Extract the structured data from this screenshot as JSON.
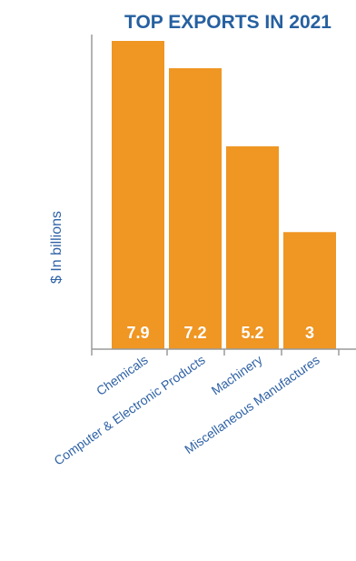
{
  "chart_data": {
    "type": "bar",
    "title": "TOP EXPORTS IN 2021",
    "ylabel": "$ In billions",
    "xlabel": "",
    "categories": [
      "Chemicals",
      "Computer & Electronic Products",
      "Machinery",
      "Miscellaneous Manufactures"
    ],
    "values": [
      7.9,
      7.2,
      5.2,
      3
    ],
    "value_labels": [
      "7.9",
      "7.2",
      "5.2",
      "3"
    ],
    "ylim": [
      0,
      7.9
    ],
    "grid": false,
    "bar_color": "#ef9623",
    "text_color": "#2f62a6",
    "axis_color": "#9a9a9a"
  }
}
